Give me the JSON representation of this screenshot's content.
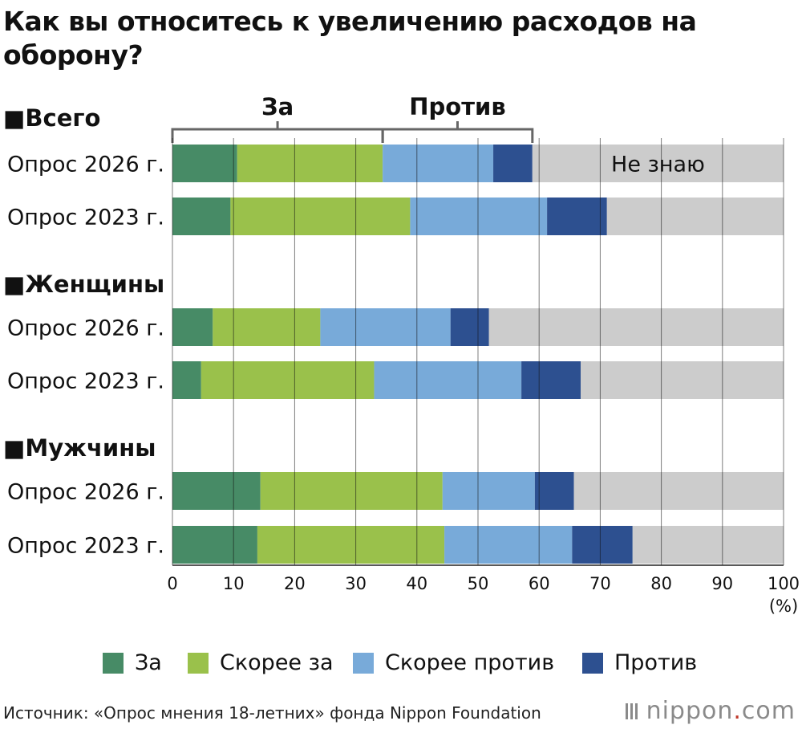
{
  "title": "Как вы относитесь к увеличению расходов на оборону?",
  "chart_data": {
    "type": "bar",
    "orientation": "horizontal",
    "stacked": true,
    "groups": [
      {
        "name": "■Всего",
        "rows": [
          {
            "label": "Опрос 2026 г.",
            "values": [
              10.6,
              23.8,
              18.1,
              6.4,
              41.1
            ]
          },
          {
            "label": "Опрос 2023 г.",
            "values": [
              9.5,
              29.4,
              22.4,
              9.8,
              28.9
            ]
          }
        ]
      },
      {
        "name": "■Женщины",
        "rows": [
          {
            "label": "Опрос 2026 г.",
            "values": [
              6.6,
              17.6,
              21.3,
              6.3,
              48.2
            ]
          },
          {
            "label": "Опрос 2023 г.",
            "values": [
              4.7,
              28.3,
              24.1,
              9.7,
              33.2
            ]
          }
        ]
      },
      {
        "name": "■Мужчины",
        "rows": [
          {
            "label": "Опрос 2026 г.",
            "values": [
              14.4,
              29.8,
              15.1,
              6.4,
              34.3
            ]
          },
          {
            "label": "Опрос 2023 г.",
            "values": [
              13.9,
              30.6,
              20.9,
              9.9,
              24.7
            ]
          }
        ]
      }
    ],
    "series": [
      {
        "name": "За",
        "color": "#478b66"
      },
      {
        "name": "Скорее за",
        "color": "#9ac14b"
      },
      {
        "name": "Скорее против",
        "color": "#78aad9"
      },
      {
        "name": "Против",
        "color": "#2d5090"
      },
      {
        "name": "Не знаю",
        "color": "#cccccc"
      }
    ],
    "xlim": [
      0,
      100
    ],
    "xticks": [
      0,
      10,
      20,
      30,
      40,
      50,
      60,
      70,
      80,
      90,
      100
    ],
    "xunit": "(%)",
    "brackets": [
      {
        "label": "За",
        "from": 0,
        "to": 34.4
      },
      {
        "label": "Против",
        "from": 34.4,
        "to": 58.9
      }
    ],
    "inline_label": {
      "text": "Не знаю",
      "group": 0,
      "row": 0,
      "series": 4
    },
    "gridlines": true
  },
  "source": "Источник: «Опрос мнения 18-летних» фонда Nippon Foundation",
  "brand": {
    "name": "nippon",
    "dot": ".",
    "suffix": "com"
  }
}
